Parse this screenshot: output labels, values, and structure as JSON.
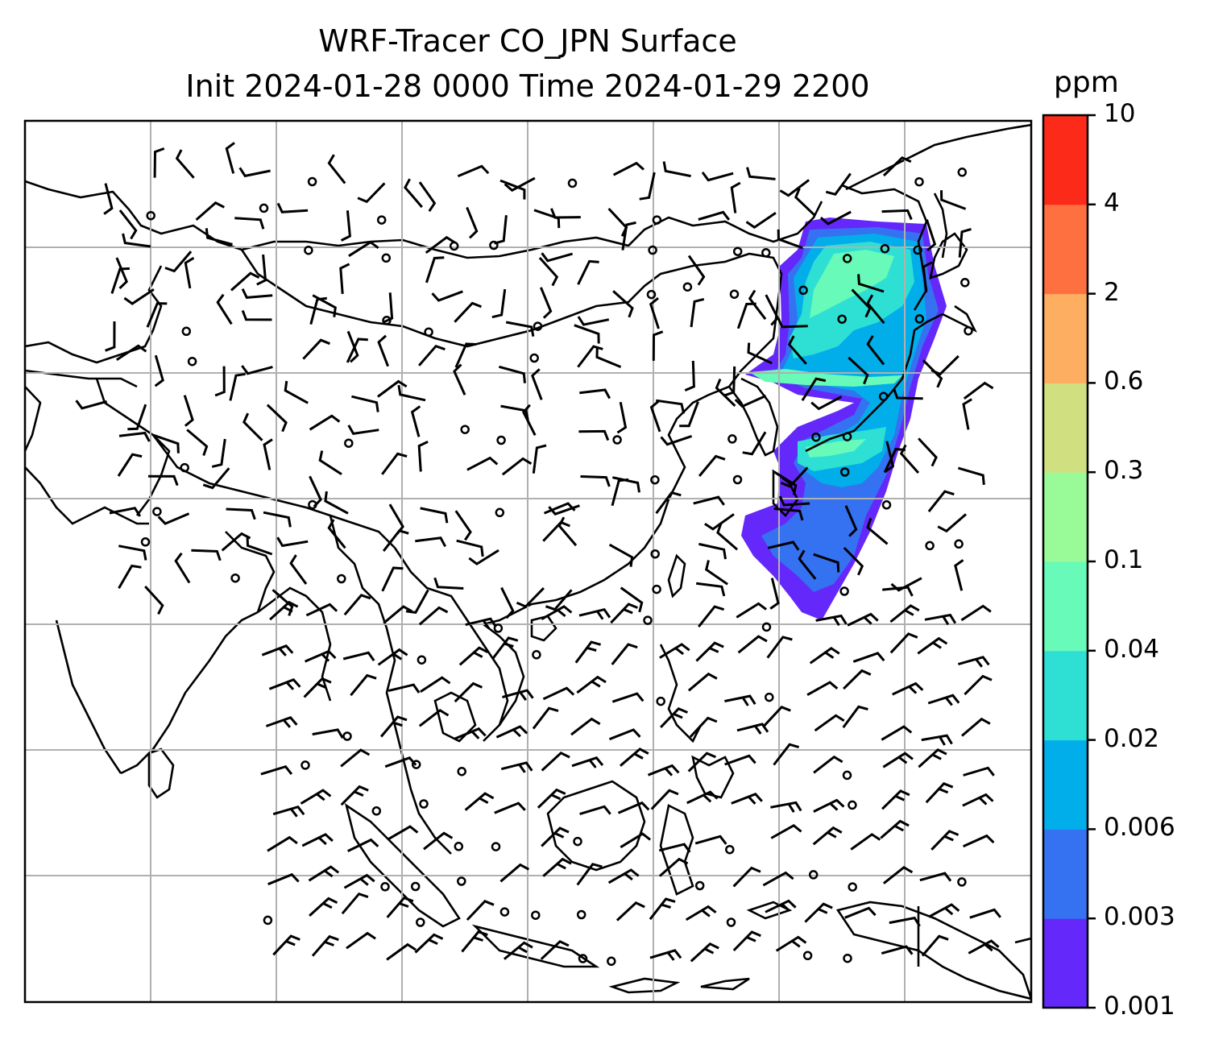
{
  "title_line1": "WRF-Tracer CO_JPN Surface",
  "title_line2": "Init 2024-01-28 0000 Time 2024-01-29 2200",
  "colorbar": {
    "unit": "ppm",
    "levels": [
      "0.001",
      "0.003",
      "0.006",
      "0.02",
      "0.04",
      "0.1",
      "0.3",
      "0.6",
      "2",
      "4",
      "10"
    ],
    "colors": [
      "#6428fa",
      "#3472f2",
      "#02aeea",
      "#2ee0d4",
      "#68fab8",
      "#98fb98",
      "#d0e080",
      "#fdae61",
      "#fe7040",
      "#fc2a18"
    ]
  },
  "map": {
    "gridlines": true,
    "features": [
      "coastlines",
      "country-borders",
      "wind-barbs",
      "co-tracer-plume"
    ]
  }
}
